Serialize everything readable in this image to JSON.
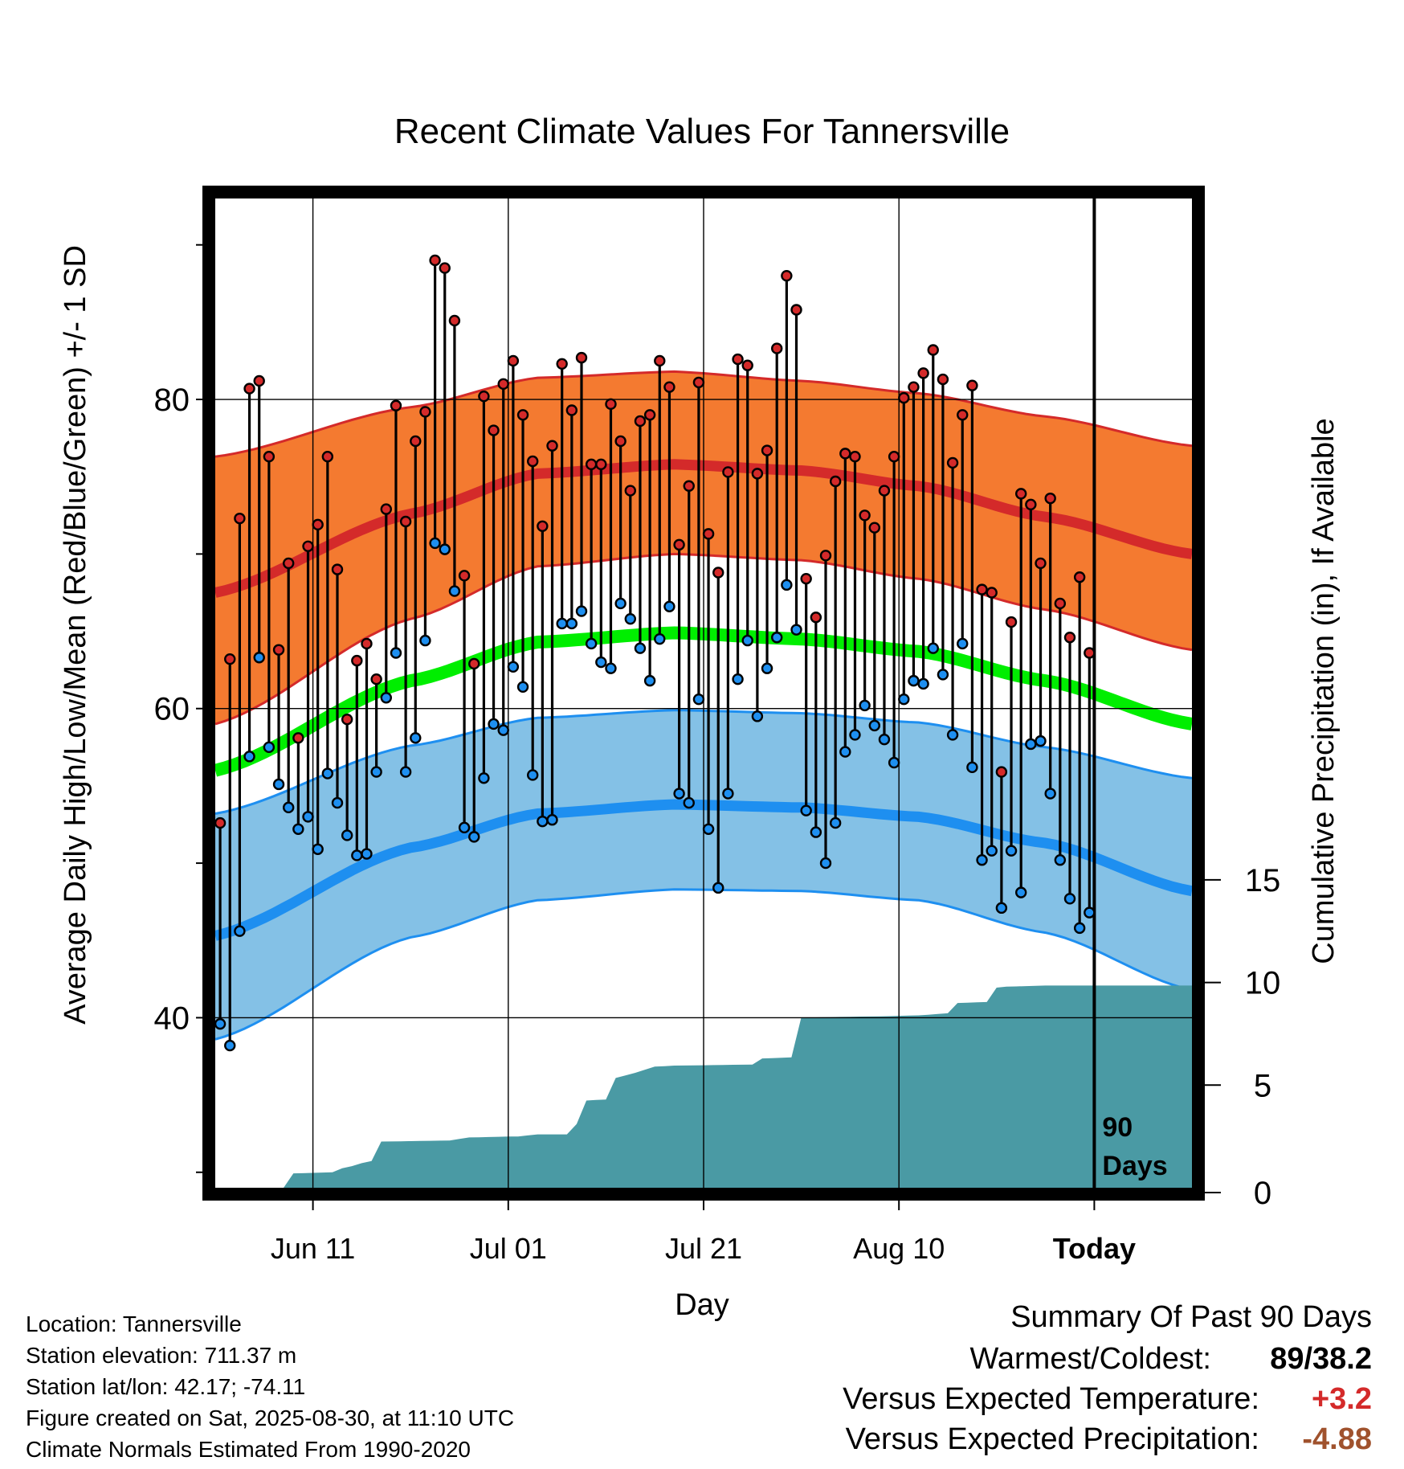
{
  "chart_data": {
    "type": "line",
    "title": "Recent Climate Values For Tannersville",
    "xlabel": "Day",
    "ylabel": "Average Daily High/Low/Mean (Red/Blue/Green) +/- 1 SD",
    "y2label": "Cumulative Precipitation (in), If Available",
    "x_ticks": [
      {
        "label": "Jun 11",
        "day": 10
      },
      {
        "label": "Jul 01",
        "day": 30
      },
      {
        "label": "Jul 21",
        "day": 50
      },
      {
        "label": "Aug 10",
        "day": 70
      },
      {
        "label": "Today",
        "day": 90
      }
    ],
    "x_range": [
      0,
      100
    ],
    "y_ticks": [
      40,
      60,
      80
    ],
    "y_minor_ticks": [
      30,
      50,
      70,
      90
    ],
    "ylim": [
      29,
      93
    ],
    "y2_ticks": [
      0,
      5,
      10,
      15
    ],
    "y2lim": [
      0,
      48.2
    ],
    "today_label": "90 Days",
    "normal_high": [
      {
        "day": 0,
        "mean": 67.5,
        "sd_low": 59.0,
        "sd_high": 76.3
      },
      {
        "day": 20,
        "mean": 72.6,
        "sd_low": 65.8,
        "sd_high": 79.5
      },
      {
        "day": 33,
        "mean": 75.2,
        "sd_low": 69.2,
        "sd_high": 81.4
      },
      {
        "day": 47,
        "mean": 75.8,
        "sd_low": 70.0,
        "sd_high": 81.8
      },
      {
        "day": 60,
        "mean": 75.4,
        "sd_low": 69.6,
        "sd_high": 81.2
      },
      {
        "day": 72,
        "mean": 74.4,
        "sd_low": 68.4,
        "sd_high": 80.4
      },
      {
        "day": 85,
        "mean": 72.4,
        "sd_low": 66.4,
        "sd_high": 78.9
      },
      {
        "day": 100,
        "mean": 70.0,
        "sd_low": 63.8,
        "sd_high": 77.0
      }
    ],
    "normal_low": [
      {
        "day": 0,
        "mean": 45.3,
        "sd_low": 38.6,
        "sd_high": 53.2
      },
      {
        "day": 20,
        "mean": 51.0,
        "sd_low": 45.2,
        "sd_high": 57.6
      },
      {
        "day": 33,
        "mean": 53.2,
        "sd_low": 47.6,
        "sd_high": 59.4
      },
      {
        "day": 47,
        "mean": 53.8,
        "sd_low": 48.3,
        "sd_high": 59.9
      },
      {
        "day": 60,
        "mean": 53.6,
        "sd_low": 48.2,
        "sd_high": 59.7
      },
      {
        "day": 72,
        "mean": 53.0,
        "sd_low": 47.6,
        "sd_high": 59.1
      },
      {
        "day": 85,
        "mean": 51.3,
        "sd_low": 45.5,
        "sd_high": 57.5
      },
      {
        "day": 100,
        "mean": 48.2,
        "sd_low": 41.8,
        "sd_high": 55.5
      }
    ],
    "normal_mean": [
      {
        "day": 0,
        "value": 56.0
      },
      {
        "day": 20,
        "value": 61.8
      },
      {
        "day": 33,
        "value": 64.3
      },
      {
        "day": 47,
        "value": 64.9
      },
      {
        "day": 60,
        "value": 64.5
      },
      {
        "day": 72,
        "value": 63.7
      },
      {
        "day": 85,
        "value": 61.8
      },
      {
        "day": 100,
        "value": 59.0
      }
    ],
    "daily_high": [
      52.6,
      63.2,
      72.3,
      80.7,
      81.2,
      76.3,
      63.8,
      69.4,
      58.1,
      70.5,
      71.9,
      76.3,
      69.0,
      59.3,
      63.1,
      64.2,
      61.9,
      72.9,
      79.6,
      72.1,
      77.3,
      79.2,
      89.0,
      88.5,
      85.1,
      68.6,
      62.9,
      80.2,
      78.0,
      81.0,
      82.5,
      79.0,
      76.0,
      71.8,
      77.0,
      82.3,
      79.3,
      82.7,
      75.8,
      75.8,
      79.7,
      77.3,
      74.1,
      78.6,
      79.0,
      82.5,
      80.8,
      70.6,
      74.4,
      81.1,
      71.3,
      68.8,
      75.3,
      82.6,
      82.2,
      75.2,
      76.7,
      83.3,
      88.0,
      85.8,
      68.4,
      65.9,
      69.9,
      74.7,
      76.5,
      76.3,
      72.5,
      71.7,
      74.1,
      76.3,
      80.1,
      80.8,
      81.7,
      83.2,
      81.3,
      75.9,
      79.0,
      80.9,
      67.7,
      67.5,
      55.9,
      65.6,
      73.9,
      73.2,
      69.4,
      73.6,
      66.8,
      64.6,
      68.5,
      63.6
    ],
    "daily_low": [
      39.6,
      38.2,
      45.6,
      56.9,
      63.3,
      57.5,
      55.1,
      53.6,
      52.2,
      53.0,
      50.9,
      55.8,
      53.9,
      51.8,
      50.5,
      50.6,
      55.9,
      60.7,
      63.6,
      55.9,
      58.1,
      64.4,
      70.7,
      70.3,
      67.6,
      52.3,
      51.7,
      55.5,
      59.0,
      58.6,
      62.7,
      61.4,
      55.7,
      52.7,
      52.8,
      65.5,
      65.5,
      66.3,
      64.2,
      63.0,
      62.6,
      66.8,
      65.8,
      63.9,
      61.8,
      64.5,
      66.6,
      54.5,
      53.9,
      60.6,
      52.2,
      48.4,
      54.5,
      61.9,
      64.4,
      59.5,
      62.6,
      64.6,
      68.0,
      65.1,
      53.4,
      52.0,
      50.0,
      52.6,
      57.2,
      58.3,
      60.2,
      58.9,
      58.0,
      56.5,
      60.6,
      61.8,
      61.6,
      63.9,
      62.2,
      58.3,
      64.2,
      56.2,
      50.2,
      50.8,
      47.1,
      50.8,
      48.1,
      57.7,
      57.9,
      54.5,
      50.2,
      47.7,
      45.8,
      46.8
    ],
    "cumulative_precip": [
      {
        "day": 0,
        "value": 0.0
      },
      {
        "day": 7,
        "value": 0.0
      },
      {
        "day": 8,
        "value": 0.7
      },
      {
        "day": 12,
        "value": 0.75
      },
      {
        "day": 13,
        "value": 0.95
      },
      {
        "day": 16,
        "value": 1.3
      },
      {
        "day": 17,
        "value": 2.25
      },
      {
        "day": 24,
        "value": 2.3
      },
      {
        "day": 26,
        "value": 2.45
      },
      {
        "day": 31,
        "value": 2.5
      },
      {
        "day": 33,
        "value": 2.6
      },
      {
        "day": 36,
        "value": 2.6
      },
      {
        "day": 37,
        "value": 3.1
      },
      {
        "day": 38,
        "value": 4.25
      },
      {
        "day": 40,
        "value": 4.3
      },
      {
        "day": 41,
        "value": 5.35
      },
      {
        "day": 43,
        "value": 5.6
      },
      {
        "day": 45,
        "value": 5.9
      },
      {
        "day": 47,
        "value": 5.95
      },
      {
        "day": 55,
        "value": 6.0
      },
      {
        "day": 56,
        "value": 6.3
      },
      {
        "day": 59,
        "value": 6.35
      },
      {
        "day": 60,
        "value": 8.3
      },
      {
        "day": 68,
        "value": 8.35
      },
      {
        "day": 72,
        "value": 8.4
      },
      {
        "day": 75,
        "value": 8.5
      },
      {
        "day": 76,
        "value": 9.0
      },
      {
        "day": 79,
        "value": 9.05
      },
      {
        "day": 80,
        "value": 9.75
      },
      {
        "day": 81,
        "value": 9.8
      },
      {
        "day": 85,
        "value": 9.85
      },
      {
        "day": 90,
        "value": 9.85
      },
      {
        "day": 100,
        "value": 9.85
      }
    ]
  },
  "info": {
    "location": "Location: Tannersville",
    "elevation": "Station elevation: 711.37 m",
    "latlon": "Station lat/lon: 42.17; -74.11",
    "created": "Figure created on Sat, 2025-08-30, at 11:10 UTC",
    "normals": "Climate Normals Estimated From 1990-2020"
  },
  "summary": {
    "title": "Summary Of Past 90 Days",
    "warm_cold_label": "Warmest/Coldest:",
    "warm_cold_value": "89/38.2",
    "temp_label": "Versus Expected Temperature:",
    "temp_value": "+3.2",
    "precip_label": "Versus Expected Precipitation:",
    "precip_value": "-4.88",
    "colors": {
      "temp": "#d42a2a",
      "precip": "#a0522d"
    }
  }
}
